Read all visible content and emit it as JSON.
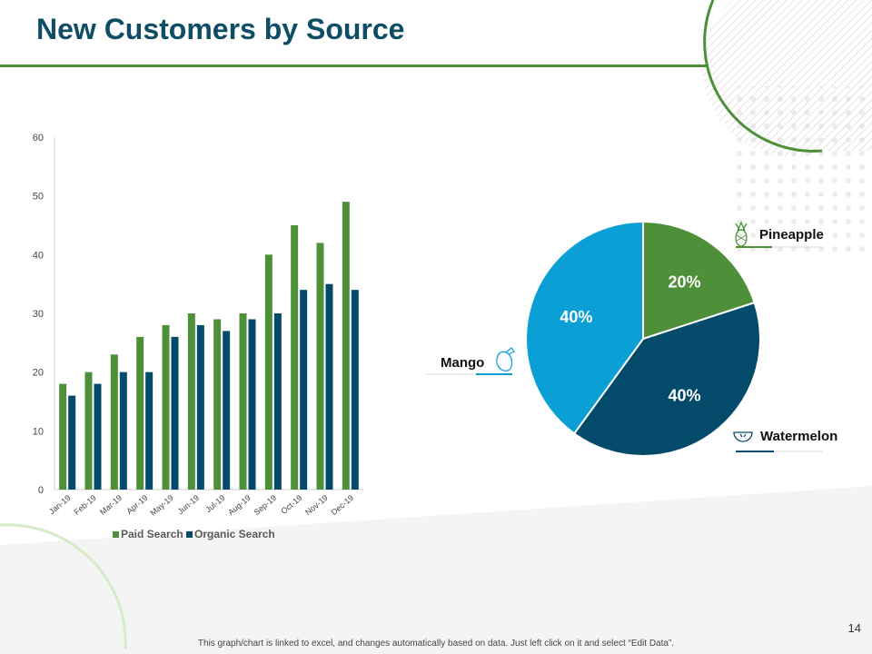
{
  "slide": {
    "title": "New Customers by Source",
    "footnote": "This graph/chart is linked to excel, and changes automatically based on data. Just left click on it and select “Edit Data”.",
    "page_number": "14"
  },
  "colors": {
    "title": "#0e4d64",
    "accent_green": "#4e8f3a",
    "dark_blue": "#034a6b",
    "light_blue": "#0aa0d6"
  },
  "chart_data": [
    {
      "type": "bar",
      "title": "",
      "xlabel": "",
      "ylabel": "",
      "categories": [
        "Jan-19",
        "Feb-19",
        "Mar-19",
        "Apr-19",
        "May-19",
        "Jun-19",
        "Jul-19",
        "Aug-19",
        "Sep-19",
        "Oct-19",
        "Nov-19",
        "Dec-19"
      ],
      "series": [
        {
          "name": "Paid Search",
          "color": "#4e8f3a",
          "values": [
            18,
            20,
            23,
            26,
            28,
            30,
            29,
            30,
            40,
            45,
            42,
            49
          ]
        },
        {
          "name": "Organic Search",
          "color": "#034a6b",
          "values": [
            16,
            18,
            20,
            20,
            26,
            28,
            27,
            29,
            30,
            34,
            35,
            34
          ]
        }
      ],
      "ylim": [
        0,
        60
      ],
      "yticks": [
        0,
        10,
        20,
        30,
        40,
        50,
        60
      ],
      "grid": false,
      "legend": "bottom"
    },
    {
      "type": "pie",
      "title": "",
      "slices": [
        {
          "label": "Pineapple",
          "value": 20,
          "display": "20%",
          "color": "#4e8f3a",
          "icon": "pineapple-icon"
        },
        {
          "label": "Watermelon",
          "value": 40,
          "display": "40%",
          "color": "#034a6b",
          "icon": "watermelon-icon"
        },
        {
          "label": "Mango",
          "value": 40,
          "display": "40%",
          "color": "#0aa0d6",
          "icon": "mango-icon"
        }
      ],
      "legend": "labels-outside"
    }
  ]
}
